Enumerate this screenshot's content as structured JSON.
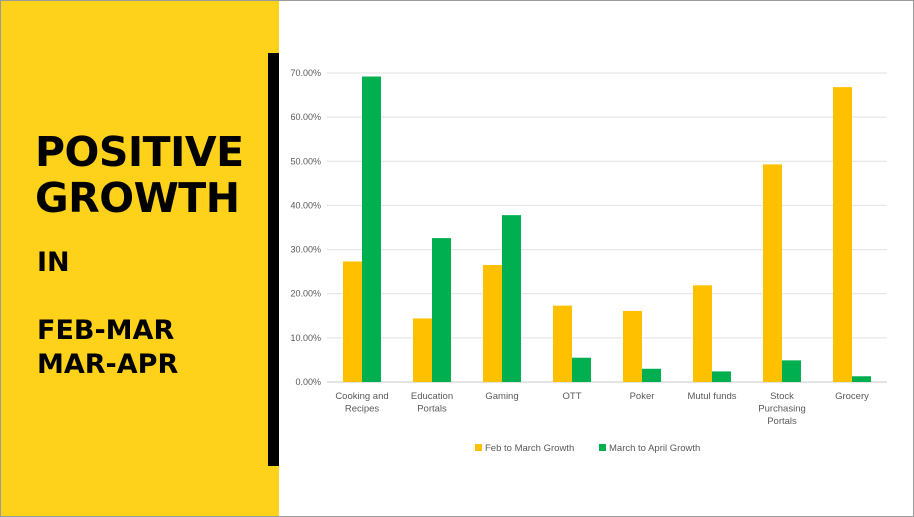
{
  "side_panel": {
    "headline_line1": "POSITIVE",
    "headline_line2": "GROWTH",
    "connector": "IN",
    "period_1": "FEB-MAR",
    "period_2": "MAR-APR",
    "background_color": "#FED11A"
  },
  "chart_data": {
    "type": "bar",
    "title": "",
    "xlabel": "",
    "ylabel": "",
    "categories": [
      [
        "Cooking and",
        "Recipes"
      ],
      [
        "Education",
        "Portals"
      ],
      [
        "Gaming"
      ],
      [
        "OTT"
      ],
      [
        "Poker"
      ],
      [
        "Mutul funds"
      ],
      [
        "Stock",
        "Purchasing",
        "Portals"
      ],
      [
        "Grocery"
      ]
    ],
    "series": [
      {
        "name": "Feb to March Growth",
        "color": "#FFC000",
        "values": [
          27.3,
          14.4,
          26.5,
          17.3,
          16.1,
          21.9,
          49.3,
          66.8
        ]
      },
      {
        "name": "March  to April Growth",
        "color": "#00B050",
        "values": [
          69.2,
          32.6,
          37.8,
          5.5,
          3.0,
          2.4,
          4.9,
          1.3
        ]
      }
    ],
    "y_ticks": [
      "0.00%",
      "10.00%",
      "20.00%",
      "30.00%",
      "40.00%",
      "50.00%",
      "60.00%",
      "70.00%"
    ],
    "ylim": [
      0,
      70
    ],
    "gridlines": true,
    "legend_position": "bottom"
  }
}
